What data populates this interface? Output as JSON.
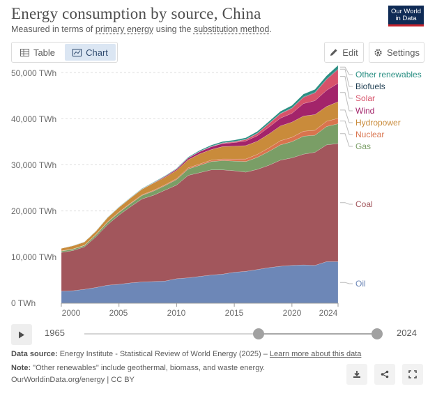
{
  "header": {
    "title": "Energy consumption by source, China",
    "subtitle_pre": "Measured in terms of ",
    "subtitle_link1": "primary energy",
    "subtitle_mid": " using the ",
    "subtitle_link2": "substitution method",
    "subtitle_post": ".",
    "logo_line1": "Our World",
    "logo_line2": "in Data"
  },
  "toolbar": {
    "tab_table": "Table",
    "tab_chart": "Chart",
    "edit_label": "Edit",
    "settings_label": "Settings"
  },
  "timeline": {
    "start_label": "1965",
    "end_label": "2024",
    "range_start_fraction": 0.59,
    "range_end_fraction": 1.0
  },
  "footer": {
    "source_label": "Data source:",
    "source_text": "Energy Institute - Statistical Review of World Energy (2025) –",
    "source_link": "Learn more about this data",
    "note_label": "Note:",
    "note_text": "\"Other renewables\" include geothermal, biomass, and waste energy.",
    "credit": "OurWorldinData.org/energy | CC BY"
  },
  "chart_data": {
    "type": "area",
    "stacked": true,
    "title": "Energy consumption by source, China",
    "y_unit": "TWh",
    "ylim": [
      0,
      50000
    ],
    "y_ticks": [
      "0 TWh",
      "10,000 TWh",
      "20,000 TWh",
      "30,000 TWh",
      "40,000 TWh",
      "50,000 TWh"
    ],
    "y_tick_values": [
      0,
      10000,
      20000,
      30000,
      40000,
      50000
    ],
    "x_ticks": [
      "2000",
      "2005",
      "2010",
      "2015",
      "2020",
      "2024"
    ],
    "x_tick_values": [
      2000,
      2005,
      2010,
      2015,
      2020,
      2024
    ],
    "xlim": [
      2000,
      2024
    ],
    "grid": "horizontal",
    "legend_placement": "right",
    "x": [
      2000,
      2001,
      2002,
      2003,
      2004,
      2005,
      2006,
      2007,
      2008,
      2009,
      2010,
      2011,
      2012,
      2013,
      2014,
      2015,
      2016,
      2017,
      2018,
      2019,
      2020,
      2021,
      2022,
      2023,
      2024
    ],
    "series": [
      {
        "name": "Oil",
        "color": "#6d87b7",
        "values": [
          2600,
          2700,
          3000,
          3400,
          3900,
          4100,
          4400,
          4600,
          4700,
          4800,
          5300,
          5500,
          5800,
          6100,
          6300,
          6700,
          6900,
          7300,
          7700,
          8000,
          8200,
          8300,
          8200,
          9000,
          9000
        ]
      },
      {
        "name": "Coal",
        "color": "#a2565c",
        "values": [
          8400,
          8700,
          9200,
          11000,
          13100,
          15000,
          16500,
          18000,
          18700,
          19700,
          20300,
          22200,
          22500,
          22800,
          22600,
          22000,
          21500,
          21700,
          22200,
          23000,
          23300,
          24000,
          24500,
          25300,
          25600
        ]
      },
      {
        "name": "Gas",
        "color": "#7a9e66",
        "values": [
          300,
          300,
          300,
          400,
          500,
          550,
          650,
          750,
          900,
          1000,
          1200,
          1400,
          1600,
          1800,
          2000,
          2100,
          2300,
          2600,
          3000,
          3300,
          3500,
          3900,
          3700,
          4000,
          4300
        ]
      },
      {
        "name": "Nuclear",
        "color": "#d9744e",
        "values": [
          40,
          50,
          60,
          100,
          130,
          130,
          140,
          150,
          170,
          180,
          190,
          230,
          260,
          290,
          350,
          440,
          550,
          650,
          760,
          910,
          950,
          1060,
          1080,
          1130,
          1160
        ]
      },
      {
        "name": "Hydropower",
        "color": "#c98b3b",
        "values": [
          560,
          700,
          720,
          710,
          900,
          1000,
          1100,
          1200,
          1550,
          1600,
          1800,
          1750,
          2200,
          2300,
          2700,
          2800,
          2900,
          2850,
          3000,
          3200,
          3300,
          3300,
          3400,
          3200,
          3600
        ]
      },
      {
        "name": "Wind",
        "color": "#a3246a",
        "values": [
          0,
          0,
          0,
          0,
          0,
          10,
          20,
          40,
          80,
          200,
          270,
          370,
          490,
          600,
          650,
          760,
          1000,
          1200,
          1500,
          1700,
          1900,
          2700,
          3000,
          3500,
          4000
        ]
      },
      {
        "name": "Solar",
        "color": "#d7526a",
        "values": [
          0,
          0,
          0,
          0,
          0,
          0,
          0,
          0,
          0,
          0,
          0,
          0,
          20,
          40,
          100,
          180,
          310,
          480,
          740,
          930,
          1080,
          1340,
          1710,
          2340,
          3000
        ]
      },
      {
        "name": "Biofuels",
        "color": "#1a3a4e",
        "values": [
          0,
          0,
          0,
          0,
          10,
          20,
          30,
          40,
          40,
          50,
          50,
          60,
          60,
          70,
          70,
          70,
          70,
          80,
          80,
          90,
          100,
          110,
          110,
          120,
          130
        ]
      },
      {
        "name": "Other renewables",
        "color": "#2a8f83",
        "values": [
          10,
          20,
          30,
          40,
          50,
          60,
          70,
          80,
          90,
          100,
          110,
          150,
          190,
          240,
          280,
          300,
          330,
          380,
          420,
          460,
          520,
          600,
          650,
          700,
          760
        ]
      }
    ],
    "legend_order": [
      "Other renewables",
      "Biofuels",
      "Solar",
      "Wind",
      "Hydropower",
      "Nuclear",
      "Gas",
      "Coal",
      "Oil"
    ]
  }
}
